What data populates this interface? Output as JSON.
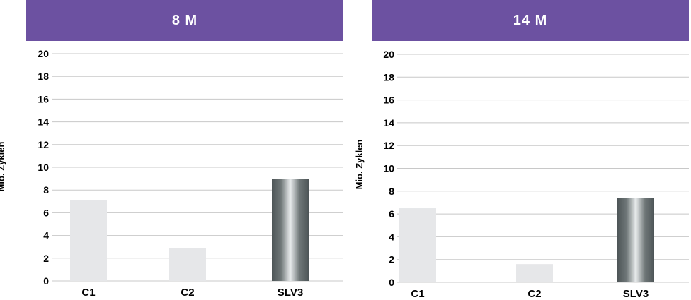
{
  "colors": {
    "header": "#6c51a1",
    "bar_light": "#e6e7e9",
    "bar_metal_dark": "#4d5557",
    "bar_metal_light": "#e9eced",
    "grid": "#c8c8c8"
  },
  "chart_data": [
    {
      "type": "bar",
      "title": "8 M",
      "ylabel": "Mio. Zyklen",
      "categories": [
        "C1",
        "C2",
        "SLV3"
      ],
      "values": [
        7.1,
        2.9,
        9.0
      ],
      "ylim": [
        0,
        20
      ],
      "yticks": [
        "0",
        "2",
        "4",
        "6",
        "8",
        "10",
        "12",
        "14",
        "16",
        "18",
        "20"
      ],
      "grid": true
    },
    {
      "type": "bar",
      "title": "14 M",
      "ylabel": "Mio. Zyklen",
      "categories": [
        "C1",
        "C2",
        "SLV3"
      ],
      "values": [
        6.5,
        1.6,
        7.4
      ],
      "ylim": [
        0,
        20
      ],
      "yticks": [
        "0",
        "2",
        "4",
        "6",
        "8",
        "10",
        "12",
        "14",
        "16",
        "18",
        "20"
      ],
      "grid": true
    }
  ]
}
